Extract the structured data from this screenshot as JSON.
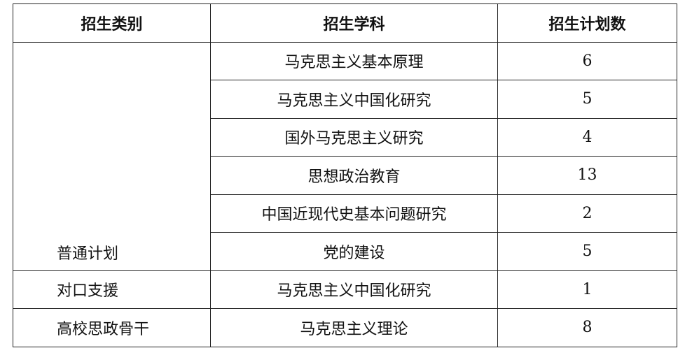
{
  "table": {
    "headers": [
      "招生类别",
      "招生学科",
      "招生计划数"
    ],
    "groups": [
      {
        "category": "普通计划",
        "rows": [
          {
            "subject": "马克思主义基本原理",
            "count": "6"
          },
          {
            "subject": "马克思主义中国化研究",
            "count": "5"
          },
          {
            "subject": "国外马克思主义研究",
            "count": "4"
          },
          {
            "subject": "思想政治教育",
            "count": "13"
          },
          {
            "subject": "中国近现代史基本问题研究",
            "count": "2"
          },
          {
            "subject": "党的建设",
            "count": "5"
          }
        ]
      },
      {
        "category": "对口支援",
        "rows": [
          {
            "subject": "马克思主义中国化研究",
            "count": "1"
          }
        ]
      },
      {
        "category": "高校思政骨干",
        "rows": [
          {
            "subject": "马克思主义理论",
            "count": "8"
          }
        ]
      }
    ]
  }
}
